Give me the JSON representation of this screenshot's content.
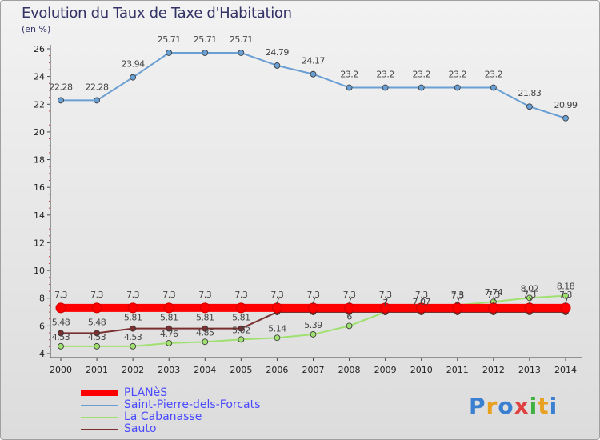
{
  "title": "Evolution du Taux de Taxe d'Habitation",
  "unit_label": "(en %)",
  "brand": "Proxiti",
  "chart_data": {
    "type": "line",
    "title": "Evolution du Taux de Taxe d'Habitation",
    "ylabel": "(en %)",
    "xlabel": "",
    "ylim": [
      4,
      26
    ],
    "yticks": [
      4,
      6,
      8,
      10,
      12,
      14,
      16,
      18,
      20,
      22,
      24,
      26
    ],
    "categories": [
      "2000",
      "2001",
      "2002",
      "2003",
      "2004",
      "2005",
      "2006",
      "2007",
      "2008",
      "2009",
      "2010",
      "2011",
      "2012",
      "2013",
      "2014"
    ],
    "grid": false,
    "legend_position": "bottom-left",
    "series": [
      {
        "name": "PLANèS",
        "color": "#ff0000",
        "values": [
          7.3,
          7.3,
          7.3,
          7.3,
          7.3,
          7.3,
          7.3,
          7.3,
          7.3,
          7.3,
          7.3,
          7.3,
          7.3,
          7.3,
          7.3
        ],
        "labels": [
          "7.3",
          "7.3",
          "7.3",
          "7.3",
          "7.3",
          "7.3",
          "7.3",
          "7.3",
          "7.3",
          "7.3",
          "7.3",
          "7.3",
          "7.3",
          "7.3",
          "7.3"
        ]
      },
      {
        "name": "Saint-Pierre-dels-Forcats",
        "color": "#6a9fd4",
        "values": [
          22.28,
          22.28,
          23.94,
          25.71,
          25.71,
          25.71,
          24.79,
          24.17,
          23.2,
          23.2,
          23.2,
          23.2,
          23.2,
          21.83,
          20.99
        ],
        "labels": [
          "22.28",
          "22.28",
          "23.94",
          "25.71",
          "25.71",
          "25.71",
          "24.79",
          "24.17",
          "23.2",
          "23.2",
          "23.2",
          "23.2",
          "23.2",
          "21.83",
          "20.99"
        ]
      },
      {
        "name": "La Cabanasse",
        "color": "#a0e070",
        "values": [
          4.53,
          4.53,
          4.53,
          4.76,
          4.85,
          5.02,
          5.14,
          5.39,
          6,
          7,
          7.07,
          7.5,
          7.74,
          8.02,
          8.18
        ],
        "labels": [
          "4.53",
          "4.53",
          "4.53",
          "4.76",
          "4.85",
          "5.02",
          "5.14",
          "5.39",
          "6",
          "7",
          "7.07",
          "7.5",
          "7.74",
          "8.02",
          "8.18"
        ]
      },
      {
        "name": "Sauto",
        "color": "#7a3030",
        "values": [
          5.48,
          5.48,
          5.81,
          5.81,
          5.81,
          5.81,
          7,
          7,
          7,
          7,
          7,
          7,
          7,
          7,
          7
        ],
        "labels": [
          "5.48",
          "5.48",
          "5.81",
          "5.81",
          "5.81",
          "5.81",
          "7",
          "7",
          "7",
          "7",
          "7",
          "7",
          "7",
          "7",
          "7"
        ]
      }
    ]
  }
}
